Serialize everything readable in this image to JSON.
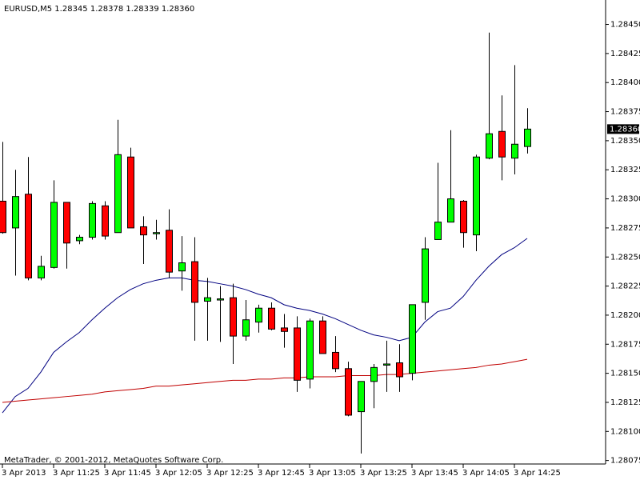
{
  "chart_data": {
    "type": "candlestick",
    "title": "EURUSD,M5  1.28345 1.28378 1.28339 1.28360",
    "footer": "MetaTrader, © 2001-2012, MetaQuotes Software Corp.",
    "price_label": "1.28360",
    "categories": [
      "3 Apr 2013",
      null,
      null,
      null,
      "3 Apr 11:25",
      null,
      null,
      null,
      "3 Apr 11:45",
      null,
      null,
      null,
      "3 Apr 12:05",
      null,
      null,
      null,
      "3 Apr 12:25",
      null,
      null,
      null,
      "3 Apr 12:45",
      null,
      null,
      null,
      "3 Apr 13:05",
      null,
      null,
      null,
      "3 Apr 13:25",
      null,
      null,
      null,
      "3 Apr 13:45",
      null,
      null,
      null,
      "3 Apr 14:05",
      null,
      null,
      null,
      "3 Apr 14:25",
      null
    ],
    "ohlc": {
      "open": [
        1.28298,
        1.28275,
        1.28304,
        1.28232,
        1.28241,
        1.28297,
        1.28264,
        1.28267,
        1.28294,
        1.28271,
        1.28336,
        1.28276,
        1.2827,
        1.28273,
        1.28238,
        1.28246,
        1.28212,
        1.28213,
        1.28215,
        1.28182,
        1.28194,
        1.28206,
        1.28189,
        1.28189,
        1.28145,
        1.28195,
        1.28168,
        1.28154,
        1.28117,
        1.28143,
        1.28157,
        1.28159,
        1.2815,
        1.28211,
        1.28265,
        1.2828,
        1.28298,
        1.28269,
        1.28335,
        1.28358,
        1.28335,
        1.28345
      ],
      "high": [
        1.28349,
        1.28325,
        1.28336,
        1.28251,
        1.28316,
        1.28297,
        1.28269,
        1.28298,
        1.28298,
        1.28368,
        1.28344,
        1.28285,
        1.28282,
        1.28291,
        1.28268,
        1.28267,
        1.28232,
        1.28225,
        1.28227,
        1.28213,
        1.28209,
        1.28211,
        1.28201,
        1.28199,
        1.28197,
        1.28199,
        1.28182,
        1.2816,
        1.28143,
        1.28158,
        1.28178,
        1.28175,
        1.28209,
        1.28267,
        1.28331,
        1.28359,
        1.28299,
        1.28338,
        1.28443,
        1.28389,
        1.28415,
        1.28378
      ],
      "low": [
        1.2827,
        1.28234,
        1.2823,
        1.2823,
        1.2824,
        1.2824,
        1.28261,
        1.28265,
        1.28265,
        1.28271,
        1.28275,
        1.28244,
        1.28265,
        1.28232,
        1.28221,
        1.28178,
        1.28178,
        1.28177,
        1.28158,
        1.28178,
        1.28185,
        1.28187,
        1.28172,
        1.28134,
        1.28137,
        1.28167,
        1.28151,
        1.28113,
        1.28081,
        1.2812,
        1.28134,
        1.28134,
        1.28144,
        1.28196,
        1.28265,
        1.2828,
        1.28258,
        1.28255,
        1.28334,
        1.28316,
        1.28321,
        1.28339
      ],
      "close": [
        1.28271,
        1.28302,
        1.28232,
        1.28242,
        1.28297,
        1.28262,
        1.28267,
        1.28296,
        1.28268,
        1.28338,
        1.28275,
        1.28269,
        1.28271,
        1.28237,
        1.28245,
        1.28211,
        1.28215,
        1.28214,
        1.28182,
        1.28196,
        1.28206,
        1.28188,
        1.28186,
        1.28144,
        1.28195,
        1.28167,
        1.28154,
        1.28114,
        1.28143,
        1.28155,
        1.28158,
        1.28147,
        1.28209,
        1.28257,
        1.2828,
        1.283,
        1.28271,
        1.28336,
        1.28356,
        1.28336,
        1.28347,
        1.2836
      ]
    },
    "up_color": "#00ff00",
    "down_color": "#ff0000",
    "lines": [
      {
        "color": "#000080",
        "values": [
          1.28116,
          1.2813,
          1.28137,
          1.28151,
          1.28168,
          1.28177,
          1.28185,
          1.28196,
          1.28206,
          1.28215,
          1.28222,
          1.28227,
          1.2823,
          1.28232,
          1.28232,
          1.2823,
          1.28229,
          1.28227,
          1.28225,
          1.28222,
          1.28218,
          1.28215,
          1.28209,
          1.28206,
          1.28204,
          1.28201,
          1.28197,
          1.28192,
          1.28187,
          1.28183,
          1.28181,
          1.28178,
          1.28181,
          1.28194,
          1.28203,
          1.28206,
          1.28216,
          1.2823,
          1.28242,
          1.28252,
          1.28258,
          1.28266
        ]
      },
      {
        "color": "#c00000",
        "values": [
          1.28125,
          1.28126,
          1.28127,
          1.28128,
          1.28129,
          1.2813,
          1.28131,
          1.28132,
          1.28134,
          1.28135,
          1.28136,
          1.28137,
          1.28139,
          1.28139,
          1.2814,
          1.28141,
          1.28142,
          1.28143,
          1.28144,
          1.28144,
          1.28145,
          1.28145,
          1.28146,
          1.28146,
          1.28147,
          1.28147,
          1.28147,
          1.28148,
          1.28148,
          1.28148,
          1.28149,
          1.28149,
          1.2815,
          1.28151,
          1.28152,
          1.28153,
          1.28154,
          1.28155,
          1.28157,
          1.28158,
          1.2816,
          1.28162
        ]
      }
    ],
    "ylim": [
      1.28072,
      1.28471
    ],
    "yticks": [
      1.28075,
      {
        "value": 1.281,
        "label": "1.28100"
      },
      1.28125,
      {
        "value": 1.2815,
        "label": "1.28150"
      },
      1.28175,
      {
        "value": 1.282,
        "label": "1.28200"
      },
      1.28225,
      {
        "value": 1.2825,
        "label": "1.28250"
      },
      1.28275,
      {
        "value": 1.283,
        "label": "1.28300"
      },
      1.28325,
      {
        "value": 1.2835,
        "label": "1.28350"
      },
      1.28375,
      {
        "value": 1.284,
        "label": "1.28400"
      },
      1.28425,
      {
        "value": 1.2845,
        "label": "1.28450"
      }
    ],
    "grid": false
  }
}
